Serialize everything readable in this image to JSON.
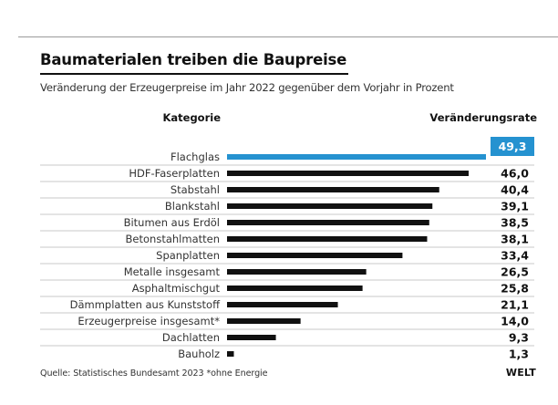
{
  "chart_data": {
    "type": "bar",
    "orientation": "horizontal",
    "title": "Baumaterialen treiben die Baupreise",
    "subtitle": "Veränderung der Erzeugerpreise im Jahr 2022 gegenüber dem Vorjahr in Prozent",
    "category_header": "Kategorie",
    "value_header": "Veränderungsrate",
    "categories": [
      "Flachglas",
      "HDF-Faserplatten",
      "Stabstahl",
      "Blankstahl",
      "Bitumen aus Erdöl",
      "Betonstahlmatten",
      "Spanplatten",
      "Metalle insgesamt",
      "Asphaltmischgut",
      "Dämmplatten aus Kunststoff",
      "Erzeugerpreise insgesamt*",
      "Dachlatten",
      "Bauholz"
    ],
    "values": [
      49.3,
      46.0,
      40.4,
      39.1,
      38.5,
      38.1,
      33.4,
      26.5,
      25.8,
      21.1,
      14.0,
      9.3,
      1.3
    ],
    "value_labels": [
      "49,3",
      "46,0",
      "40,4",
      "39,1",
      "38,5",
      "38,1",
      "33,4",
      "26,5",
      "25,8",
      "21,1",
      "14,0",
      "9,3",
      "1,3"
    ],
    "highlight_index": 0,
    "xlim": [
      0,
      49.3
    ],
    "colors": {
      "highlight": "#2592d0",
      "bar": "#111111",
      "separator": "#c8c8c8"
    }
  },
  "footer": {
    "source": "Quelle: Statistisches Bundesamt 2023   *ohne Energie",
    "logo": "WELT"
  }
}
